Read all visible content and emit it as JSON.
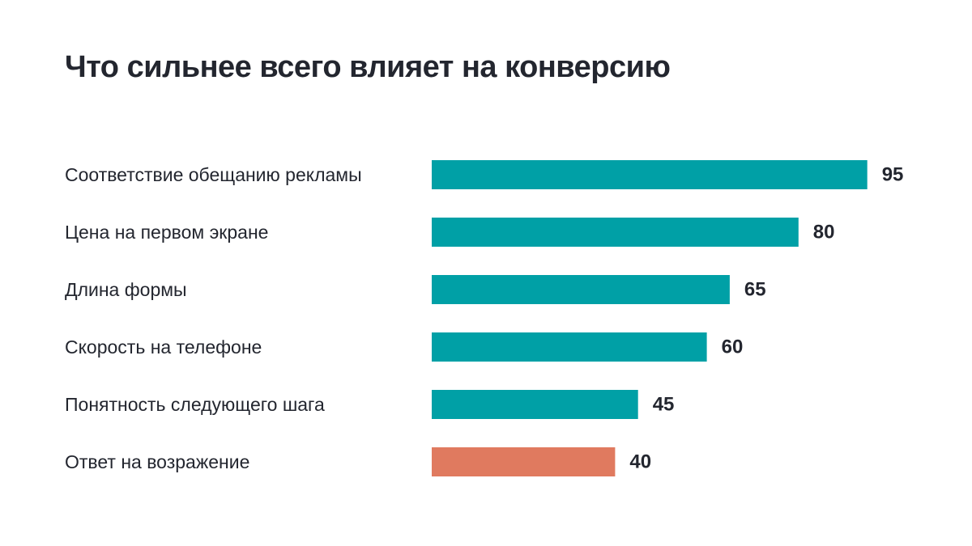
{
  "chart_data": {
    "type": "bar",
    "orientation": "horizontal",
    "title": "Что сильнее всего влияет на конверсию",
    "categories": [
      "Соответствие обещанию рекламы",
      "Цена на первом экране",
      "Длина формы",
      "Скорость на телефоне",
      "Понятность следующего шага",
      "Ответ на возражение"
    ],
    "values": [
      95,
      80,
      65,
      60,
      45,
      40
    ],
    "value_labels": [
      "95",
      "80",
      "65",
      "60",
      "45",
      "40"
    ],
    "colors": [
      "#00A0A6",
      "#00A0A6",
      "#00A0A6",
      "#00A0A6",
      "#00A0A6",
      "#E07A5F"
    ],
    "highlight_index": 5,
    "xlim": [
      0,
      100
    ],
    "grid": false,
    "legend": "none"
  }
}
